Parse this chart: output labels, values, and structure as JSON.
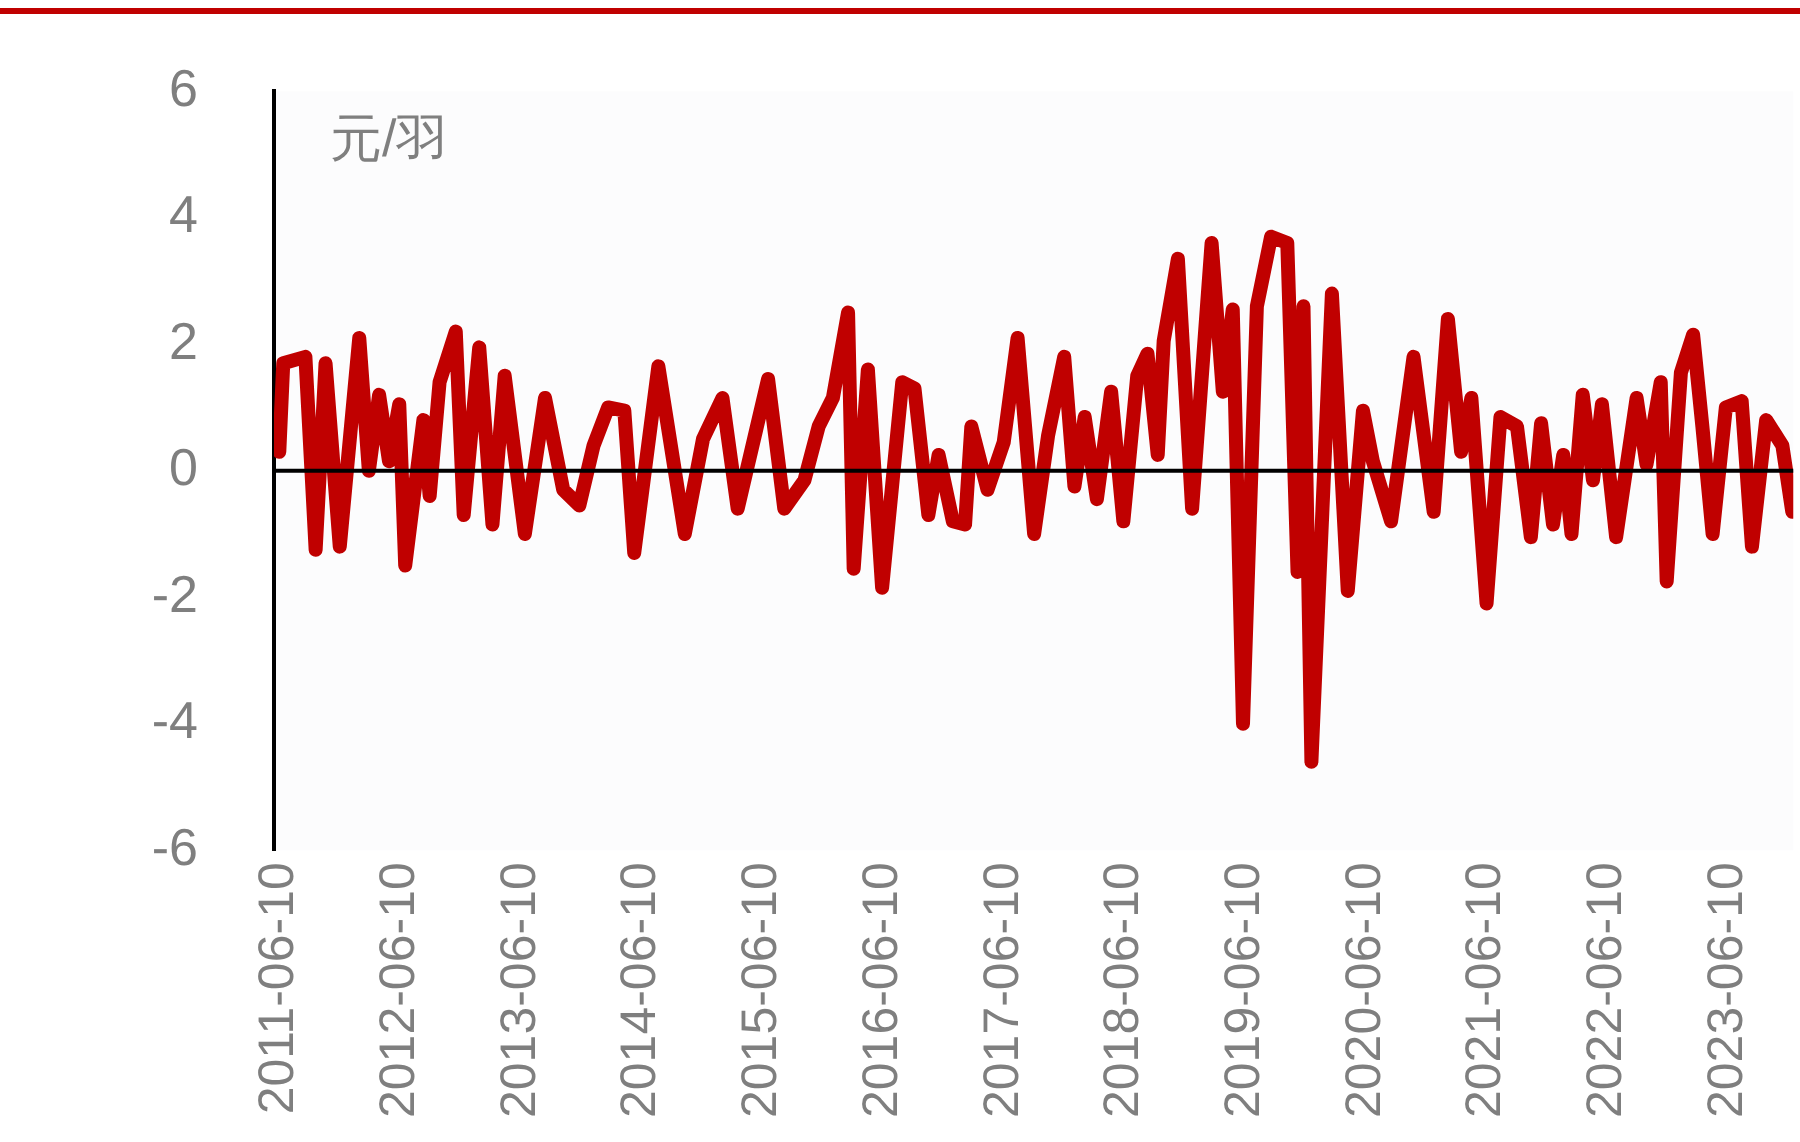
{
  "chart_data": {
    "type": "line",
    "ylabel": "元/羽",
    "x": [
      "2011-06-10",
      "2011-06-22",
      "2011-08-28",
      "2011-09-28",
      "2011-10-28",
      "2011-12-10",
      "2012-02-07",
      "2012-03-07",
      "2012-04-07",
      "2012-05-07",
      "2012-06-07",
      "2012-06-25",
      "2012-08-19",
      "2012-09-07",
      "2012-10-07",
      "2012-11-25",
      "2012-12-19",
      "2013-02-04",
      "2013-03-16",
      "2013-04-22",
      "2013-06-22",
      "2013-08-22",
      "2013-10-16",
      "2013-12-04",
      "2014-01-16",
      "2014-03-01",
      "2014-04-19",
      "2014-05-19",
      "2014-07-31",
      "2014-10-19",
      "2014-12-13",
      "2015-02-10",
      "2015-03-28",
      "2015-06-28",
      "2015-08-16",
      "2015-10-16",
      "2015-11-28",
      "2016-01-10",
      "2016-02-25",
      "2016-03-13",
      "2016-04-25",
      "2016-06-07",
      "2016-08-07",
      "2016-09-13",
      "2016-10-25",
      "2016-11-25",
      "2017-01-07",
      "2017-02-13",
      "2017-03-04",
      "2017-04-22",
      "2017-06-10",
      "2017-07-22",
      "2017-09-10",
      "2017-10-22",
      "2017-12-10",
      "2018-01-10",
      "2018-02-10",
      "2018-03-19",
      "2018-05-01",
      "2018-06-07",
      "2018-07-19",
      "2018-08-19",
      "2018-09-19",
      "2018-10-07",
      "2018-11-19",
      "2019-01-01",
      "2019-03-01",
      "2019-04-04",
      "2019-05-04",
      "2019-06-04",
      "2019-07-16",
      "2019-08-28",
      "2019-10-16",
      "2019-11-16",
      "2019-12-04",
      "2019-12-28",
      "2020-02-28",
      "2020-04-16",
      "2020-06-01",
      "2020-07-01",
      "2020-08-25",
      "2020-11-01",
      "2021-01-01",
      "2021-02-13",
      "2021-03-25",
      "2021-04-25",
      "2021-06-10",
      "2021-07-22",
      "2021-09-10",
      "2021-10-22",
      "2021-11-22",
      "2021-12-28",
      "2022-01-28",
      "2022-02-22",
      "2022-03-28",
      "2022-04-28",
      "2022-05-25",
      "2022-07-07",
      "2022-09-07",
      "2022-10-07",
      "2022-11-19",
      "2022-12-07",
      "2023-01-19",
      "2023-02-25",
      "2023-03-25",
      "2023-04-25",
      "2023-06-04",
      "2023-07-22",
      "2023-08-22",
      "2023-10-04",
      "2023-11-22",
      "2023-12-22"
    ],
    "series": [
      {
        "color": "#c00000",
        "values": [
          0.3,
          1.7,
          1.8,
          -1.25,
          1.7,
          -1.2,
          2.1,
          0,
          1.2,
          0.15,
          1.05,
          -1.5,
          0.8,
          -0.4,
          1.4,
          2.2,
          -0.7,
          1.95,
          -0.85,
          1.5,
          -1.0,
          1.15,
          -0.3,
          -0.55,
          0.4,
          1.0,
          0.95,
          -1.3,
          1.65,
          -1.0,
          0.5,
          1.15,
          -0.6,
          1.45,
          -0.6,
          -0.15,
          0.7,
          1.15,
          2.5,
          -1.55,
          1.6,
          -1.85,
          1.4,
          1.3,
          -0.7,
          0.25,
          -0.8,
          -0.85,
          0.7,
          -0.3,
          0.45,
          2.1,
          -1.0,
          0.55,
          1.8,
          -0.25,
          0.85,
          -0.45,
          1.25,
          -0.8,
          1.5,
          1.85,
          0.25,
          2.05,
          3.35,
          -0.6,
          3.6,
          1.25,
          2.55,
          -4.0,
          2.6,
          3.7,
          3.6,
          -1.6,
          2.6,
          -4.6,
          2.8,
          -1.9,
          0.95,
          0.15,
          -0.8,
          1.8,
          -0.65,
          2.4,
          0.3,
          1.15,
          -2.1,
          0.85,
          0.7,
          -1.05,
          0.75,
          -0.85,
          0.25,
          -1.0,
          1.2,
          -0.15,
          1.05,
          -1.05,
          1.15,
          0.1,
          1.4,
          -1.75,
          1.55,
          2.15,
          0.7,
          -1.0,
          1.0,
          1.1,
          -1.2,
          0.8,
          0.4,
          -0.65
        ]
      }
    ],
    "xlim": [
      "2011-05-25",
      "2023-12-25"
    ],
    "xticks": [
      "2011-06-10",
      "2012-06-10",
      "2013-06-10",
      "2014-06-10",
      "2015-06-10",
      "2016-06-10",
      "2017-06-10",
      "2018-06-10",
      "2019-06-10",
      "2020-06-10",
      "2021-06-10",
      "2022-06-10",
      "2023-06-10"
    ],
    "ylim": [
      -6,
      6
    ],
    "yticks": [
      -6,
      -4,
      -2,
      0,
      2,
      4,
      6
    ],
    "ref_lines": [
      {
        "axis": "y",
        "value": 0,
        "color": "#000000"
      }
    ],
    "grid": false,
    "legend": false,
    "marker": "none",
    "line_style": "solid"
  }
}
